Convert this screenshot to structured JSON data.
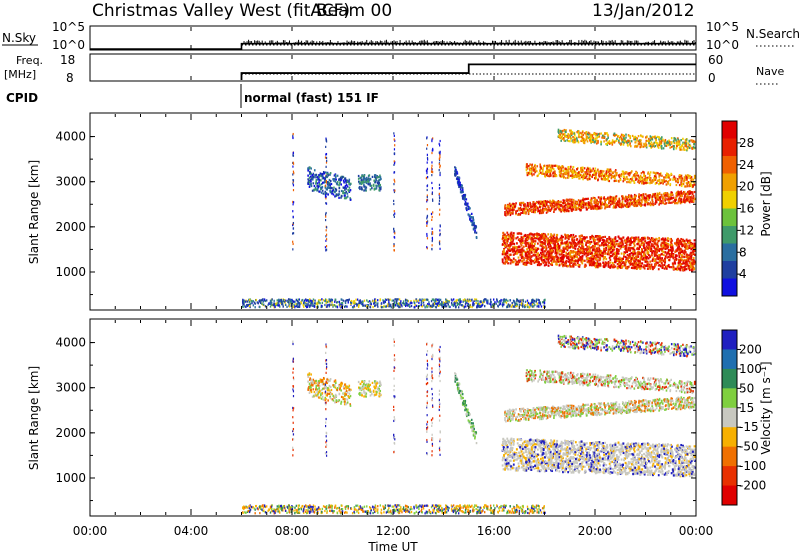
{
  "header": {
    "station": "Christmas Valley West (fitACF)",
    "beam": "Beam 00",
    "date": "13/Jan/2012"
  },
  "top_panels": {
    "nsky_label": "N.Sky",
    "nsky_ticks": [
      "10^5",
      "10^0"
    ],
    "nsearch_label": "N.Search",
    "nsearch_ticks": [
      "10^5",
      "10^0"
    ],
    "freq_label": "Freq.",
    "freq_unit": "[MHz]",
    "freq_ticks": [
      "18",
      "8"
    ],
    "nave_label": "Nave",
    "nave_ticks": [
      "60",
      "0"
    ],
    "cpid_label": "CPID",
    "cpid_text": "normal (fast) 151 IF"
  },
  "colors": {
    "power": [
      "#1010e0",
      "#1f3fa0",
      "#2a6ea0",
      "#3f9a6a",
      "#6cc23c",
      "#f0d000",
      "#f0a000",
      "#f06000",
      "#e82000",
      "#e00000"
    ],
    "velocity": [
      "#2020c0",
      "#1f6fb0",
      "#2e8b57",
      "#7fcf3f",
      "#c8c8c0",
      "#f7b000",
      "#f07000",
      "#e83000",
      "#e00000"
    ]
  },
  "chart_data": [
    {
      "type": "line",
      "title": "N.Sky / N.Search",
      "xlim": [
        "00:00",
        "24:00"
      ],
      "series": [
        {
          "name": "N.Sky",
          "x": [
            "00:00",
            "06:00",
            "06:00",
            "24:00"
          ],
          "values": [
            0,
            0,
            1.2,
            1.2
          ]
        }
      ]
    },
    {
      "type": "line",
      "title": "Freq. / Nave",
      "xlim": [
        "00:00",
        "24:00"
      ],
      "series": [
        {
          "name": "Freq.",
          "x": [
            "06:00",
            "15:00",
            "15:00",
            "24:00"
          ],
          "values": [
            10.9,
            10.9,
            14.5,
            14.5
          ]
        },
        {
          "name": "Nave",
          "x": [
            "06:00",
            "24:00"
          ],
          "values": [
            10,
            10
          ]
        }
      ]
    },
    {
      "type": "heatmap",
      "ylabel": "Slant Range [km]",
      "yticks": [
        "1000",
        "2000",
        "3000",
        "4000"
      ],
      "ylim": [
        180,
        4500
      ],
      "colorbar_label": "Power [dB]",
      "colorbar_ticks": [
        "4",
        "8",
        "12",
        "16",
        "20",
        "24",
        "28"
      ],
      "clim": [
        0,
        30
      ],
      "xticks": [
        "00:00",
        "04:00",
        "08:00",
        "12:00",
        "16:00",
        "20:00",
        "00:00"
      ]
    },
    {
      "type": "heatmap",
      "ylabel": "Slant Range [km]",
      "yticks": [
        "1000",
        "2000",
        "3000",
        "4000"
      ],
      "ylim": [
        180,
        4500
      ],
      "colorbar_label": "Velocity [m s⁻¹]",
      "colorbar_ticks": [
        "200",
        "100",
        "50",
        "15",
        "-15",
        "-50",
        "-100",
        "-200"
      ],
      "clim": [
        -250,
        250
      ],
      "xticks": [
        "00:00",
        "04:00",
        "08:00",
        "12:00",
        "16:00",
        "20:00",
        "00:00"
      ],
      "xlabel": "Time UT"
    }
  ]
}
